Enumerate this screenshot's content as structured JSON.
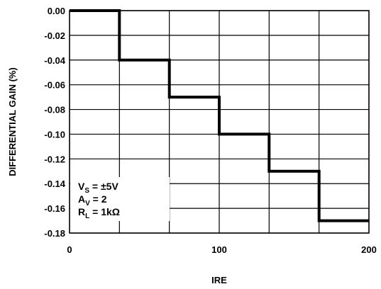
{
  "chart_data": {
    "type": "line",
    "title": "",
    "xlabel": "IRE",
    "ylabel": "DIFFERENTIAL GAIN (%)",
    "xlim": [
      0,
      200
    ],
    "ylim": [
      -0.18,
      0.0
    ],
    "grid": true,
    "x_ticks": [
      0,
      100,
      200
    ],
    "x_tick_labels": [
      "0",
      "100",
      "200"
    ],
    "y_ticks": [
      0.0,
      -0.02,
      -0.04,
      -0.06,
      -0.08,
      -0.1,
      -0.12,
      -0.14,
      -0.16,
      -0.18
    ],
    "y_tick_labels": [
      "0.00",
      "-0.02",
      "-0.04",
      "-0.06",
      "-0.08",
      "-0.10",
      "-0.12",
      "-0.14",
      "-0.16",
      "-0.18"
    ],
    "series": [
      {
        "points": [
          [
            0,
            0.0
          ],
          [
            33.3,
            0.0
          ],
          [
            33.3,
            -0.04
          ],
          [
            66.7,
            -0.04
          ],
          [
            66.7,
            -0.07
          ],
          [
            100,
            -0.07
          ],
          [
            100,
            -0.1
          ],
          [
            133.3,
            -0.1
          ],
          [
            133.3,
            -0.13
          ],
          [
            166.7,
            -0.13
          ],
          [
            166.7,
            -0.17
          ],
          [
            200,
            -0.17
          ]
        ]
      }
    ],
    "conditions": {
      "vs": {
        "main": "V",
        "sub": "S",
        "rest": " = ±5V"
      },
      "av": {
        "main": "A",
        "sub": "V",
        "rest": " = 2"
      },
      "rl": {
        "main": "R",
        "sub": "L",
        "rest": " = 1kΩ"
      }
    }
  }
}
